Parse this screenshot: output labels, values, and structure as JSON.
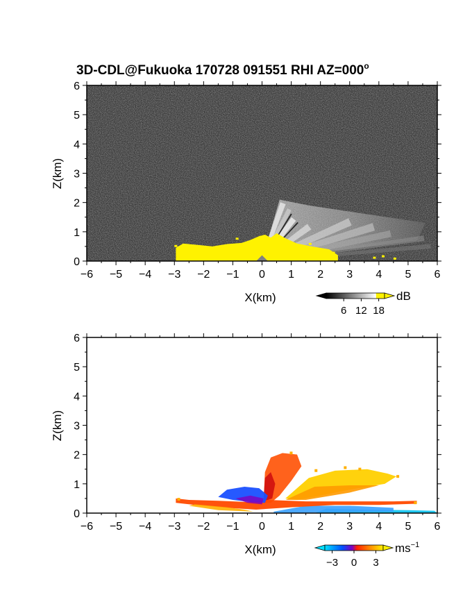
{
  "title": "3D-CDL@Fukuoka 170728 091551 RHI AZ=000",
  "title_suffix": "o",
  "chart_data": [
    {
      "type": "heatmap",
      "quantity": "signal intensity",
      "xlabel": "X(km)",
      "ylabel": "Z(km)",
      "xlim": [
        -6,
        6
      ],
      "ylim": [
        0,
        6
      ],
      "xticks": [
        -6,
        -5,
        -4,
        -3,
        -2,
        -1,
        0,
        1,
        2,
        3,
        4,
        5,
        6
      ],
      "yticks": [
        0,
        1,
        2,
        3,
        4,
        5,
        6
      ],
      "background": "noise",
      "colorbar": {
        "label": "dB",
        "ticks": [
          6,
          12,
          18
        ],
        "range": [
          0,
          20
        ],
        "colors": [
          "#000000",
          "#ffffff",
          "#fff200"
        ]
      },
      "regions": [
        {
          "name": "low-level yellow band",
          "x_range": [
            -2.9,
            2.6
          ],
          "z_range": [
            0,
            0.8
          ],
          "level_db": 20
        },
        {
          "name": "bright beams east",
          "x_range": [
            0,
            5.6
          ],
          "z_range": [
            0,
            2.1
          ],
          "level_db": 14
        }
      ]
    },
    {
      "type": "heatmap",
      "quantity": "radial velocity",
      "xlabel": "X(km)",
      "ylabel": "Z(km)",
      "xlim": [
        -6,
        6
      ],
      "ylim": [
        0,
        6
      ],
      "xticks": [
        -6,
        -5,
        -4,
        -3,
        -2,
        -1,
        0,
        1,
        2,
        3,
        4,
        5,
        6
      ],
      "yticks": [
        0,
        1,
        2,
        3,
        4,
        5,
        6
      ],
      "background": "white",
      "colorbar": {
        "label": "ms",
        "label_exponent": "−1",
        "ticks": [
          "−3",
          "0",
          "3"
        ],
        "tick_values": [
          -3,
          0,
          3
        ],
        "range": [
          -4,
          4
        ],
        "colors": [
          "#00e0ff",
          "#0050ff",
          "#8000c0",
          "#ff2000",
          "#ff8000",
          "#fff000"
        ]
      },
      "regions": [
        {
          "name": "red-orange layer",
          "x_range": [
            -2.9,
            5.3
          ],
          "z_range": [
            0.1,
            0.5
          ],
          "velocity": 1.5
        },
        {
          "name": "blue layer west",
          "x_range": [
            -1.5,
            0
          ],
          "z_range": [
            0.3,
            0.9
          ],
          "velocity": -2.5
        },
        {
          "name": "yellow plume east",
          "x_range": [
            0.5,
            4.6
          ],
          "z_range": [
            0.4,
            1.5
          ],
          "velocity": 3
        },
        {
          "name": "red column",
          "x_range": [
            0,
            1.4
          ],
          "z_range": [
            0.3,
            2.1
          ],
          "velocity": 1.5
        },
        {
          "name": "cyan near-ground east",
          "x_range": [
            2,
            6
          ],
          "z_range": [
            0,
            0.25
          ],
          "velocity": -3.5
        }
      ]
    }
  ]
}
